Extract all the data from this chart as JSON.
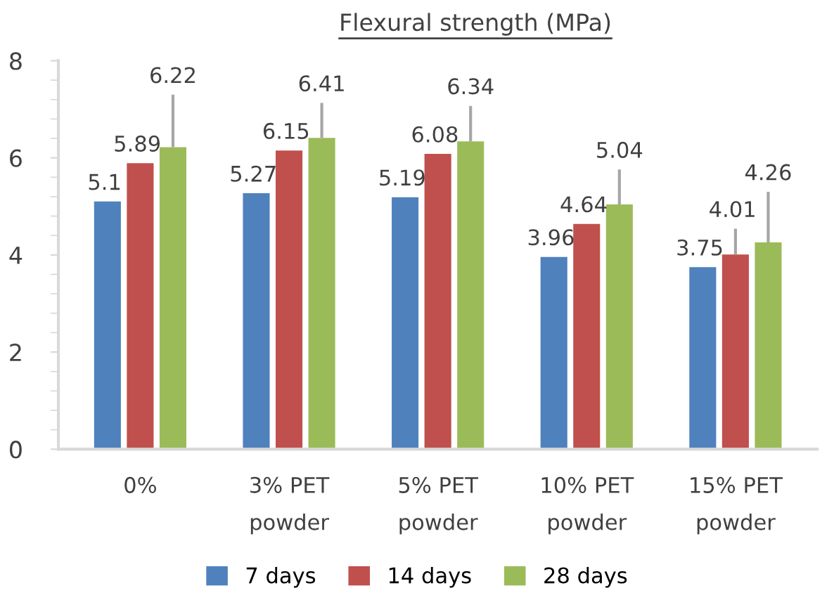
{
  "chart_data": {
    "type": "bar",
    "title": "Flexural strength (MPa)",
    "categories": [
      "0%",
      "3% PET\npowder",
      "5% PET\npowder",
      "10% PET\npowder",
      "15% PET\npowder"
    ],
    "series": [
      {
        "name": "7 days",
        "color": "#4f81bd",
        "values": [
          5.1,
          5.27,
          5.19,
          3.96,
          3.75
        ]
      },
      {
        "name": "14 days",
        "color": "#c0504d",
        "values": [
          5.89,
          6.15,
          6.08,
          4.64,
          4.01
        ],
        "errors": [
          null,
          null,
          null,
          null,
          [
            4.01,
            4.54
          ]
        ]
      },
      {
        "name": "28 days",
        "color": "#9bbb59",
        "values": [
          6.22,
          6.41,
          6.34,
          5.04,
          4.26
        ],
        "errors": [
          [
            6.22,
            7.3
          ],
          [
            6.41,
            7.13
          ],
          [
            6.34,
            7.07
          ],
          [
            5.04,
            5.76
          ],
          [
            4.26,
            5.3
          ]
        ]
      }
    ],
    "ylim": [
      0,
      8
    ],
    "yticks": [
      0,
      2,
      4,
      6,
      8
    ],
    "grid": false,
    "legend": "bottom",
    "data_labels": true
  }
}
